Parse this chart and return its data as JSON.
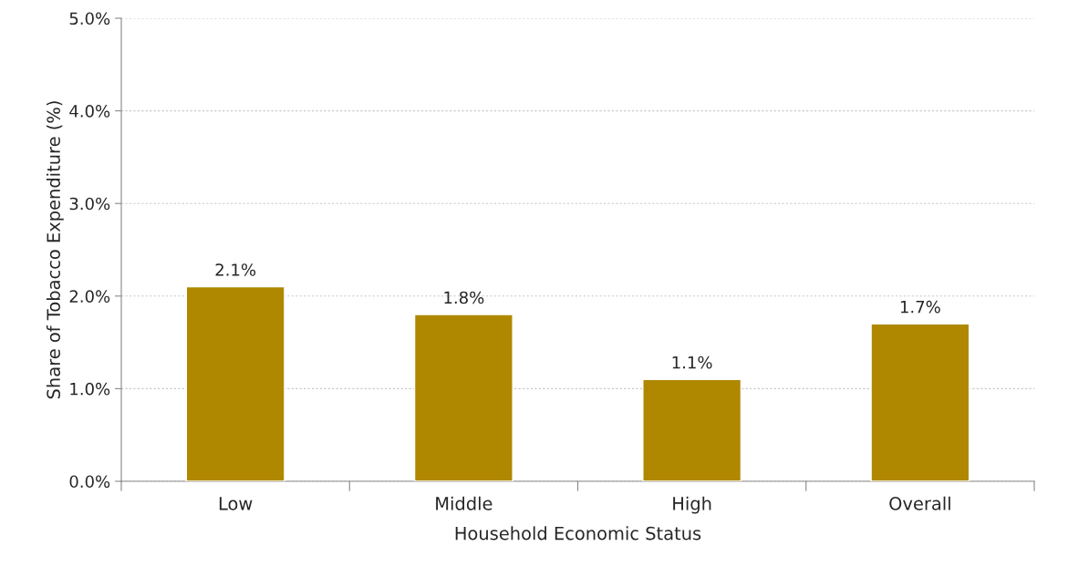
{
  "chart_data": {
    "type": "bar",
    "xlabel": "Household Economic Status",
    "ylabel": "Share of Tobacco Expenditure (%)",
    "categories": [
      "Low",
      "Middle",
      "High",
      "Overall"
    ],
    "values": [
      2.1,
      1.8,
      1.1,
      1.7
    ],
    "value_labels": [
      "2.1%",
      "1.8%",
      "1.1%",
      "1.7%"
    ],
    "color": "#b08800",
    "ylim": [
      0,
      5
    ],
    "yticks": [
      {
        "value": 0,
        "label": "0.0%"
      },
      {
        "value": 1,
        "label": "1.0%"
      },
      {
        "value": 2,
        "label": "2.0%"
      },
      {
        "value": 3,
        "label": "3.0%"
      },
      {
        "value": 4,
        "label": "4.0%"
      },
      {
        "value": 5,
        "label": "5.0%"
      }
    ],
    "grid": "y"
  }
}
